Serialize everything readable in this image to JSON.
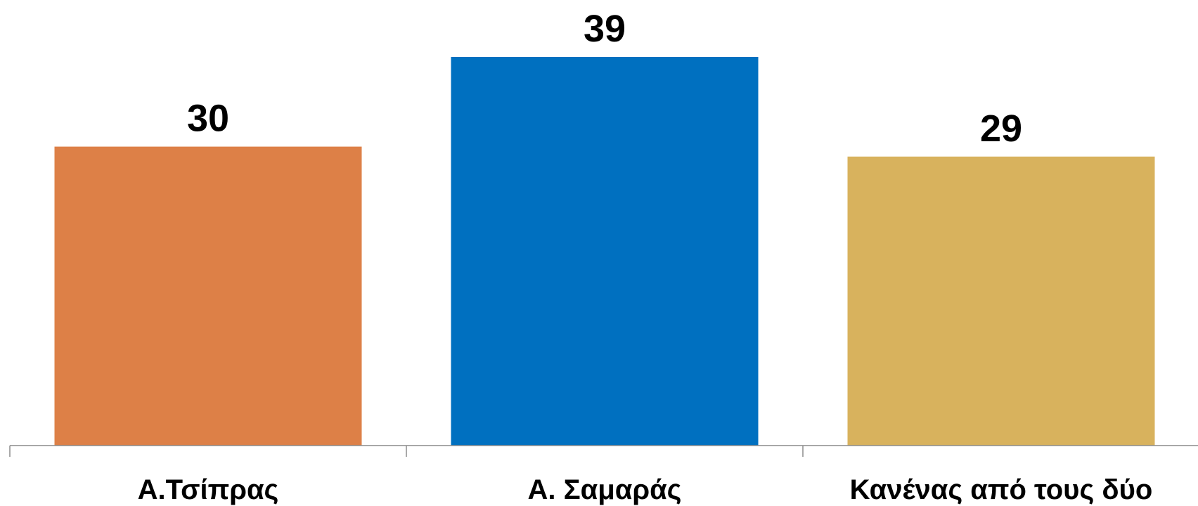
{
  "chart_data": {
    "type": "bar",
    "categories": [
      "Α.Τσίπρας",
      "Α. Σαμαράς",
      "Κανένας από τους δύο"
    ],
    "values": [
      30,
      39,
      29
    ],
    "colors": [
      "#dd8047",
      "#0070c0",
      "#d8b25d"
    ],
    "title": "",
    "xlabel": "",
    "ylabel": "",
    "ylim": [
      0,
      43
    ],
    "grid": false,
    "legend": "none",
    "data_labels": true
  }
}
